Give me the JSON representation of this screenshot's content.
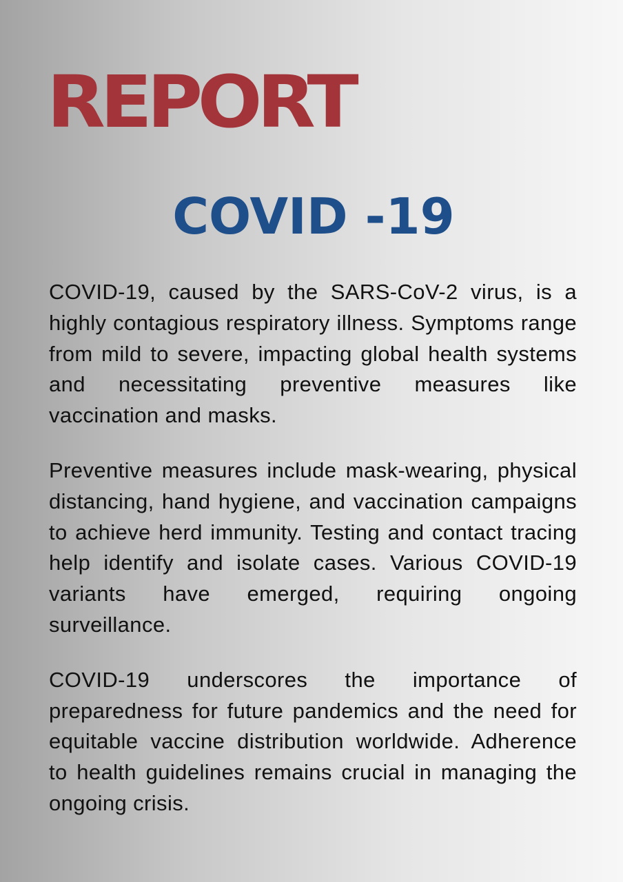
{
  "document": {
    "report_label": "REPORT",
    "topic": "COVID -19",
    "paragraphs": [
      "COVID-19, caused by the SARS-CoV-2 virus, is a highly contagious respiratory illness. Symptoms range from mild to severe, impacting global health systems and necessitating preventive measures like vaccination and masks.",
      "Preventive measures include mask-wearing, physical distancing, hand hygiene, and vaccination campaigns to achieve herd immunity. Testing and contact tracing help identify and isolate cases. Various COVID-19 variants have emerged, requiring ongoing surveillance.",
      "COVID-19 underscores the importance of preparedness for future pandemics and the need for equitable vaccine distribution worldwide. Adherence to health guidelines remains crucial in managing the ongoing crisis."
    ]
  },
  "colors": {
    "report_red": "#a2343a",
    "topic_blue": "#1f4f8b",
    "body_text": "#111111",
    "background_left": "#a3a3a3",
    "background_right": "#f7f7f7"
  }
}
